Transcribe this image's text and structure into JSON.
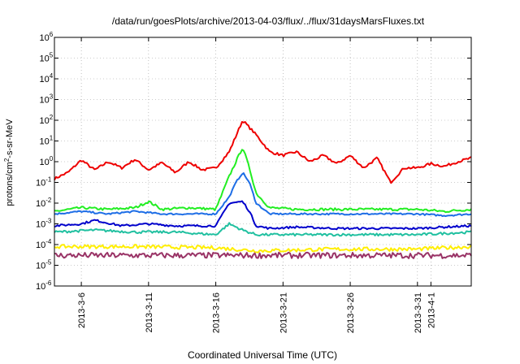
{
  "chart_data": {
    "type": "line",
    "title": "/data/run/goesPlots/archive/2013-04-03/flux/../flux/31daysMarsFluxes.txt",
    "xlabel": "Coordinated Universal Time (UTC)",
    "ylabel": {
      "prefix": "protons/cm",
      "sup": "2",
      "suffix": "-s-sr-MeV"
    },
    "y_scale": "log",
    "ylim": [
      1e-06,
      1000000.0
    ],
    "xlim": [
      "2013-03-04",
      "2013-04-04"
    ],
    "grid": true,
    "y_ticks": [
      {
        "value": 1e-06,
        "base": "10",
        "exp": "-6"
      },
      {
        "value": 1e-05,
        "base": "10",
        "exp": "-5"
      },
      {
        "value": 0.0001,
        "base": "10",
        "exp": "-4"
      },
      {
        "value": 0.001,
        "base": "10",
        "exp": "-3"
      },
      {
        "value": 0.01,
        "base": "10",
        "exp": "-2"
      },
      {
        "value": 0.1,
        "base": "10",
        "exp": "-1"
      },
      {
        "value": 1.0,
        "base": "10",
        "exp": "0"
      },
      {
        "value": 10.0,
        "base": "10",
        "exp": "1"
      },
      {
        "value": 100.0,
        "base": "10",
        "exp": "2"
      },
      {
        "value": 1000.0,
        "base": "10",
        "exp": "3"
      },
      {
        "value": 10000.0,
        "base": "10",
        "exp": "4"
      },
      {
        "value": 100000.0,
        "base": "10",
        "exp": "5"
      },
      {
        "value": 1000000.0,
        "base": "10",
        "exp": "6"
      }
    ],
    "x_ticks": [
      "2013-3-6",
      "2013-3-11",
      "2013-3-16",
      "2013-3-21",
      "2013-3-26",
      "2013-3-31",
      "2013-4-1"
    ],
    "series": [
      {
        "color": "#ee0000",
        "x": [
          "2013-03-04",
          "2013-03-05",
          "2013-03-06",
          "2013-03-07",
          "2013-03-08",
          "2013-03-09",
          "2013-03-10",
          "2013-03-11",
          "2013-03-12",
          "2013-03-13",
          "2013-03-14",
          "2013-03-15",
          "2013-03-16",
          "2013-03-17",
          "2013-03-18",
          "2013-03-19",
          "2013-03-20",
          "2013-03-21",
          "2013-03-22",
          "2013-03-23",
          "2013-03-24",
          "2013-03-25",
          "2013-03-26",
          "2013-03-27",
          "2013-03-28",
          "2013-03-29",
          "2013-03-30",
          "2013-03-31",
          "2013-04-01",
          "2013-04-02",
          "2013-04-03",
          "2013-04-04"
        ],
        "values": [
          0.15,
          0.3,
          1.2,
          0.4,
          1.0,
          0.5,
          1.3,
          0.4,
          0.9,
          0.3,
          1.0,
          0.4,
          0.5,
          3.0,
          100,
          20,
          3.0,
          2.0,
          3.0,
          1.0,
          2.0,
          0.8,
          2.0,
          0.5,
          1.5,
          0.1,
          0.5,
          0.5,
          0.8,
          0.6,
          1.0,
          1.5
        ]
      },
      {
        "color": "#22ee22",
        "x": [
          "2013-03-04",
          "2013-03-06",
          "2013-03-08",
          "2013-03-10",
          "2013-03-11",
          "2013-03-12",
          "2013-03-14",
          "2013-03-16",
          "2013-03-17",
          "2013-03-17.5",
          "2013-03-18",
          "2013-03-18.5",
          "2013-03-19",
          "2013-03-20",
          "2013-03-22",
          "2013-03-25",
          "2013-03-28",
          "2013-03-31",
          "2013-04-02",
          "2013-04-04"
        ],
        "values": [
          0.004,
          0.006,
          0.005,
          0.006,
          0.012,
          0.005,
          0.006,
          0.005,
          0.2,
          1.0,
          5.0,
          0.5,
          0.03,
          0.006,
          0.005,
          0.005,
          0.005,
          0.005,
          0.004,
          0.005
        ]
      },
      {
        "color": "#1e6ee6",
        "x": [
          "2013-03-04",
          "2013-03-06",
          "2013-03-08",
          "2013-03-10",
          "2013-03-12",
          "2013-03-14",
          "2013-03-16",
          "2013-03-17",
          "2013-03-17.5",
          "2013-03-18",
          "2013-03-18.5",
          "2013-03-19",
          "2013-03-20",
          "2013-03-22",
          "2013-03-25",
          "2013-03-28",
          "2013-03-31",
          "2013-04-02",
          "2013-04-04"
        ],
        "values": [
          0.003,
          0.004,
          0.003,
          0.004,
          0.003,
          0.003,
          0.003,
          0.02,
          0.1,
          0.3,
          0.1,
          0.01,
          0.003,
          0.003,
          0.003,
          0.003,
          0.003,
          0.0025,
          0.003
        ]
      },
      {
        "color": "#0000cc",
        "x": [
          "2013-03-04",
          "2013-03-06",
          "2013-03-07",
          "2013-03-09",
          "2013-03-11",
          "2013-03-13",
          "2013-03-16",
          "2013-03-17",
          "2013-03-18",
          "2013-03-18.5",
          "2013-03-19",
          "2013-03-20",
          "2013-03-22",
          "2013-03-25",
          "2013-03-28",
          "2013-03-31",
          "2013-04-02",
          "2013-04-04"
        ],
        "values": [
          0.0008,
          0.001,
          0.0015,
          0.0008,
          0.001,
          0.0008,
          0.0008,
          0.01,
          0.012,
          0.004,
          0.0008,
          0.0006,
          0.0007,
          0.0006,
          0.0006,
          0.0006,
          0.0007,
          0.0008
        ]
      },
      {
        "color": "#20c0a0",
        "x": [
          "2013-03-04",
          "2013-03-07",
          "2013-03-10",
          "2013-03-13",
          "2013-03-16",
          "2013-03-17",
          "2013-03-18",
          "2013-03-19",
          "2013-03-21",
          "2013-03-25",
          "2013-03-28",
          "2013-03-31",
          "2013-04-04"
        ],
        "values": [
          0.0004,
          0.0005,
          0.0004,
          0.0004,
          0.0003,
          0.001,
          0.0005,
          0.0003,
          0.0003,
          0.0003,
          0.0003,
          0.0003,
          0.0004
        ]
      },
      {
        "color": "#ffee00",
        "x": [
          "2013-03-04",
          "2013-03-10",
          "2013-03-16",
          "2013-03-19",
          "2013-03-25",
          "2013-03-31",
          "2013-04-04"
        ],
        "values": [
          8e-05,
          8e-05,
          7e-05,
          5e-05,
          6e-05,
          6e-05,
          8e-05
        ]
      },
      {
        "color": "#993366",
        "x": [
          "2013-03-04",
          "2013-03-10",
          "2013-03-16",
          "2013-03-22",
          "2013-03-28",
          "2013-04-04"
        ],
        "values": [
          3e-05,
          3e-05,
          3e-05,
          3e-05,
          3e-05,
          3e-05
        ]
      }
    ]
  }
}
